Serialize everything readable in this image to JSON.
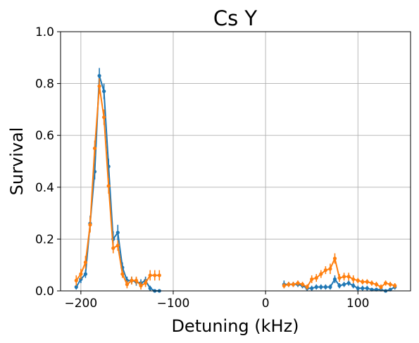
{
  "chart_data": {
    "type": "line",
    "title": "Cs Y",
    "xlabel": "Detuning (kHz)",
    "ylabel": "Survival",
    "xlim": [
      -222,
      157
    ],
    "ylim": [
      0,
      1.0
    ],
    "xticks": [
      -200,
      -100,
      0,
      100
    ],
    "xtick_labels": [
      "−200",
      "−100",
      "0",
      "100"
    ],
    "yticks": [
      0.0,
      0.2,
      0.4,
      0.6,
      0.8,
      1.0
    ],
    "ytick_labels": [
      "0.0",
      "0.2",
      "0.4",
      "0.6",
      "0.8",
      "1.0"
    ],
    "grid": true,
    "colors": {
      "series1": "#1f77b4",
      "series2": "#ff7f0e",
      "grid": "#b0b0b0"
    },
    "series": [
      {
        "color": "#1f77b4",
        "segments": [
          {
            "x": [
              -205,
              -200,
              -195,
              -190,
              -185,
              -180,
              -175,
              -170,
              -165,
              -160,
              -155,
              -150,
              -145,
              -140,
              -135,
              -130,
              -125,
              -120,
              -115
            ],
            "y": [
              0.015,
              0.045,
              0.065,
              0.26,
              0.46,
              0.83,
              0.77,
              0.48,
              0.2,
              0.225,
              0.09,
              0.04,
              0.04,
              0.035,
              0.03,
              0.04,
              0.01,
              0.0,
              0.0
            ],
            "err": [
              0.01,
              0.015,
              0.015,
              0.03,
              0.03,
              0.03,
              0.03,
              0.03,
              0.03,
              0.03,
              0.02,
              0.015,
              0.015,
              0.015,
              0.015,
              0.015,
              0.01,
              0.0,
              0.0
            ]
          },
          {
            "x": [
              20,
              25,
              30,
              35,
              40,
              45,
              50,
              55,
              60,
              65,
              70,
              75,
              80,
              85,
              90,
              95,
              100,
              105,
              110,
              115,
              120,
              125,
              130,
              135,
              140
            ],
            "y": [
              0.025,
              0.025,
              0.025,
              0.025,
              0.02,
              0.01,
              0.01,
              0.015,
              0.015,
              0.015,
              0.015,
              0.045,
              0.02,
              0.025,
              0.03,
              0.02,
              0.01,
              0.01,
              0.01,
              0.005,
              0.005,
              0.005,
              0.0,
              0.005,
              0.015
            ],
            "err": [
              0.015,
              0.01,
              0.01,
              0.01,
              0.01,
              0.01,
              0.01,
              0.01,
              0.01,
              0.01,
              0.01,
              0.015,
              0.01,
              0.01,
              0.01,
              0.01,
              0.01,
              0.01,
              0.01,
              0.005,
              0.005,
              0.005,
              0.005,
              0.005,
              0.01
            ]
          }
        ]
      },
      {
        "color": "#ff7f0e",
        "segments": [
          {
            "x": [
              -205,
              -200,
              -195,
              -190,
              -185,
              -180,
              -175,
              -170,
              -165,
              -160,
              -155,
              -150,
              -145,
              -140,
              -135,
              -130,
              -125,
              -120,
              -115
            ],
            "y": [
              0.04,
              0.065,
              0.11,
              0.255,
              0.55,
              0.79,
              0.67,
              0.405,
              0.165,
              0.175,
              0.065,
              0.025,
              0.04,
              0.04,
              0.02,
              0.03,
              0.06,
              0.06,
              0.06
            ],
            "err": [
              0.02,
              0.02,
              0.025,
              0.03,
              0.03,
              0.03,
              0.03,
              0.03,
              0.02,
              0.02,
              0.015,
              0.015,
              0.015,
              0.015,
              0.015,
              0.015,
              0.02,
              0.02,
              0.02
            ]
          },
          {
            "x": [
              20,
              25,
              30,
              35,
              40,
              45,
              50,
              55,
              60,
              65,
              70,
              75,
              80,
              85,
              90,
              95,
              100,
              105,
              110,
              115,
              120,
              125,
              130,
              135,
              140
            ],
            "y": [
              0.02,
              0.025,
              0.025,
              0.03,
              0.025,
              0.015,
              0.045,
              0.05,
              0.065,
              0.08,
              0.085,
              0.125,
              0.05,
              0.055,
              0.055,
              0.045,
              0.04,
              0.035,
              0.035,
              0.03,
              0.025,
              0.015,
              0.03,
              0.025,
              0.02
            ],
            "err": [
              0.01,
              0.01,
              0.01,
              0.01,
              0.01,
              0.01,
              0.015,
              0.015,
              0.015,
              0.015,
              0.02,
              0.02,
              0.015,
              0.015,
              0.015,
              0.015,
              0.01,
              0.01,
              0.01,
              0.01,
              0.01,
              0.01,
              0.01,
              0.01,
              0.01
            ]
          }
        ]
      }
    ]
  }
}
